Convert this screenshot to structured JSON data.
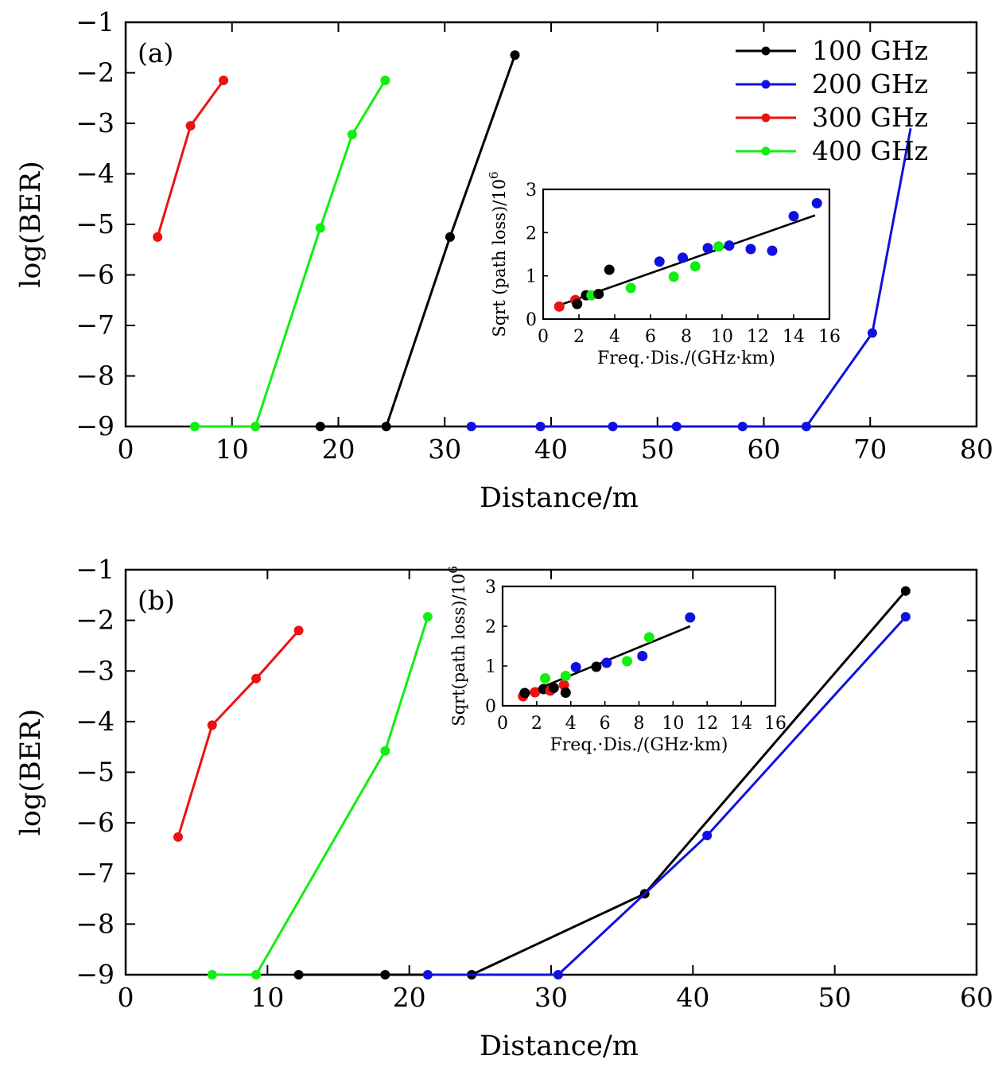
{
  "colors": {
    "100 GHz": "#000000",
    "200 GHz": "#1010e0",
    "300 GHz": "#ee1111",
    "400 GHz": "#11ee11"
  },
  "chart_data": [
    {
      "type": "line",
      "panel_label": "(a)",
      "xlabel": "Distance/m",
      "ylabel": "log(BER)",
      "xlim": [
        0,
        80
      ],
      "ylim": [
        -9,
        -1
      ],
      "xticks": [
        "0",
        "10",
        "20",
        "30",
        "40",
        "50",
        "60",
        "70",
        "80"
      ],
      "yticks": [
        "−1",
        "−2",
        "−3",
        "−4",
        "−5",
        "−6",
        "−7",
        "−8",
        "−9"
      ],
      "legend_position": "top-right",
      "series": [
        {
          "name": "100 GHz",
          "color": "#000000",
          "x": [
            18.3,
            24.5,
            30.5,
            36.6
          ],
          "y": [
            -9,
            -9,
            -5.25,
            -1.65
          ]
        },
        {
          "name": "200 GHz",
          "color": "#1010e0",
          "x": [
            32.5,
            39,
            45.8,
            51.8,
            58,
            64,
            70.2,
            73.8
          ],
          "y": [
            -9,
            -9,
            -9,
            -9,
            -9,
            -9,
            -7.15,
            -3.1
          ],
          "markers_count": 7
        },
        {
          "name": "300 GHz",
          "color": "#ee1111",
          "x": [
            3,
            6.1,
            9.2
          ],
          "y": [
            -5.25,
            -3.05,
            -2.15
          ]
        },
        {
          "name": "400 GHz",
          "color": "#11ee11",
          "x": [
            6.5,
            12.2,
            18.3,
            21.3,
            24.4
          ],
          "y": [
            -9,
            -9,
            -5.07,
            -3.22,
            -2.15
          ]
        }
      ],
      "inset": {
        "type": "scatter",
        "xlabel": "Freq.·Dis./(GHz·km)",
        "ylabel": "Sqrt (path loss)/10",
        "ylabel_exp": "6",
        "xlim": [
          0,
          16
        ],
        "ylim": [
          0,
          3
        ],
        "xticks": [
          "0",
          "2",
          "4",
          "6",
          "8",
          "10",
          "12",
          "14",
          "16"
        ],
        "yticks": [
          "0",
          "1",
          "2",
          "3"
        ],
        "fit_line": {
          "x": [
            0.9,
            15.2
          ],
          "y": [
            0.32,
            2.4
          ]
        },
        "points": [
          {
            "series": "300 GHz",
            "x": 0.9,
            "y": 0.29
          },
          {
            "series": "300 GHz",
            "x": 1.8,
            "y": 0.44
          },
          {
            "series": "100 GHz",
            "x": 1.9,
            "y": 0.35
          },
          {
            "series": "100 GHz",
            "x": 2.4,
            "y": 0.55
          },
          {
            "series": "400 GHz",
            "x": 2.7,
            "y": 0.55
          },
          {
            "series": "100 GHz",
            "x": 3.1,
            "y": 0.58
          },
          {
            "series": "100 GHz",
            "x": 3.7,
            "y": 1.14
          },
          {
            "series": "400 GHz",
            "x": 4.9,
            "y": 0.72
          },
          {
            "series": "200 GHz",
            "x": 6.5,
            "y": 1.33
          },
          {
            "series": "400 GHz",
            "x": 7.3,
            "y": 0.98
          },
          {
            "series": "200 GHz",
            "x": 7.8,
            "y": 1.42
          },
          {
            "series": "400 GHz",
            "x": 8.5,
            "y": 1.22
          },
          {
            "series": "200 GHz",
            "x": 9.2,
            "y": 1.64
          },
          {
            "series": "400 GHz",
            "x": 9.8,
            "y": 1.68
          },
          {
            "series": "200 GHz",
            "x": 10.4,
            "y": 1.7
          },
          {
            "series": "200 GHz",
            "x": 11.6,
            "y": 1.62
          },
          {
            "series": "200 GHz",
            "x": 12.8,
            "y": 1.58
          },
          {
            "series": "200 GHz",
            "x": 14.0,
            "y": 2.38
          },
          {
            "series": "200 GHz",
            "x": 15.3,
            "y": 2.68
          }
        ]
      }
    },
    {
      "type": "line",
      "panel_label": "(b)",
      "xlabel": "Distance/m",
      "ylabel": "log(BER)",
      "xlim": [
        0,
        60
      ],
      "ylim": [
        -9,
        -1
      ],
      "xticks": [
        "0",
        "10",
        "20",
        "30",
        "40",
        "50",
        "60"
      ],
      "yticks": [
        "−1",
        "−2",
        "−3",
        "−4",
        "−5",
        "−6",
        "−7",
        "−8",
        "−9"
      ],
      "series": [
        {
          "name": "100 GHz",
          "color": "#000000",
          "x": [
            12.2,
            18.3,
            24.4,
            36.6,
            55
          ],
          "y": [
            -9,
            -9,
            -9,
            -7.4,
            -1.42
          ]
        },
        {
          "name": "200 GHz",
          "color": "#1010e0",
          "x": [
            21.3,
            30.5,
            41,
            55
          ],
          "y": [
            -9,
            -9,
            -6.25,
            -1.93
          ]
        },
        {
          "name": "300 GHz",
          "color": "#ee1111",
          "x": [
            3.7,
            6.1,
            9.2,
            12.2
          ],
          "y": [
            -6.28,
            -4.07,
            -3.15,
            -2.2
          ]
        },
        {
          "name": "400 GHz",
          "color": "#11ee11",
          "x": [
            6.1,
            9.2,
            18.3,
            21.3
          ],
          "y": [
            -9,
            -9,
            -4.58,
            -1.93
          ]
        }
      ],
      "inset": {
        "type": "scatter",
        "xlabel": "Freq.·Dis./(GHz·km)",
        "ylabel": "Sqrt(path loss)/10",
        "ylabel_exp": "6",
        "xlim": [
          0,
          16
        ],
        "ylim": [
          0,
          3
        ],
        "xticks": [
          "0",
          "2",
          "4",
          "6",
          "8",
          "10",
          "12",
          "14",
          "16"
        ],
        "yticks": [
          "0",
          "1",
          "2",
          "3"
        ],
        "fit_line": {
          "x": [
            1.2,
            11
          ],
          "y": [
            0.27,
            2.0
          ]
        },
        "points": [
          {
            "series": "300 GHz",
            "x": 1.2,
            "y": 0.24
          },
          {
            "series": "100 GHz",
            "x": 1.3,
            "y": 0.32
          },
          {
            "series": "300 GHz",
            "x": 1.9,
            "y": 0.34
          },
          {
            "series": "100 GHz",
            "x": 2.4,
            "y": 0.42
          },
          {
            "series": "400 GHz",
            "x": 2.5,
            "y": 0.69
          },
          {
            "series": "300 GHz",
            "x": 2.8,
            "y": 0.38
          },
          {
            "series": "100 GHz",
            "x": 3.0,
            "y": 0.45
          },
          {
            "series": "300 GHz",
            "x": 3.6,
            "y": 0.52
          },
          {
            "series": "400 GHz",
            "x": 3.7,
            "y": 0.75
          },
          {
            "series": "100 GHz",
            "x": 3.7,
            "y": 0.33
          },
          {
            "series": "200 GHz",
            "x": 4.3,
            "y": 0.97
          },
          {
            "series": "100 GHz",
            "x": 5.5,
            "y": 0.98
          },
          {
            "series": "200 GHz",
            "x": 6.1,
            "y": 1.08
          },
          {
            "series": "400 GHz",
            "x": 7.3,
            "y": 1.12
          },
          {
            "series": "200 GHz",
            "x": 8.2,
            "y": 1.25
          },
          {
            "series": "400 GHz",
            "x": 8.6,
            "y": 1.72
          },
          {
            "series": "200 GHz",
            "x": 11.0,
            "y": 2.22
          }
        ]
      }
    }
  ]
}
